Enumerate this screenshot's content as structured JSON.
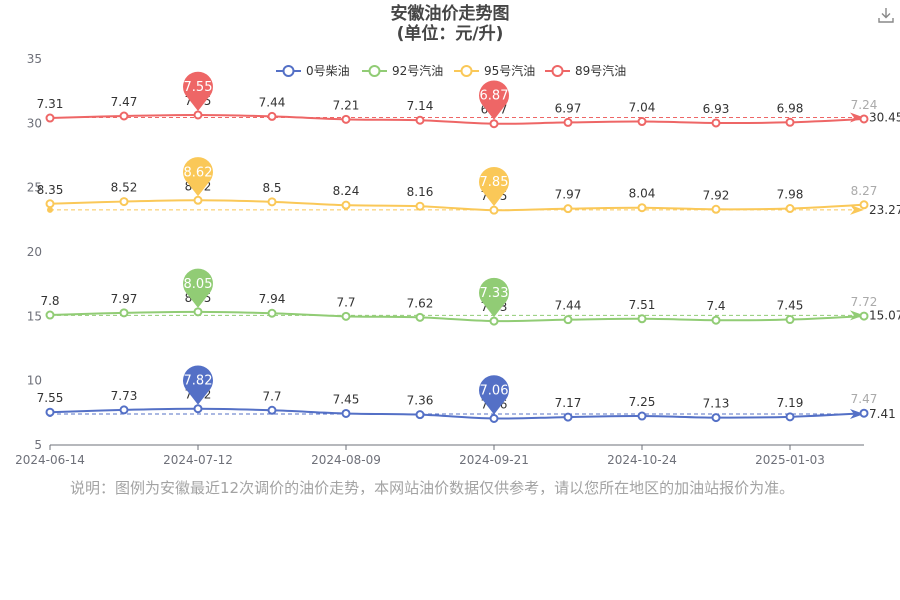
{
  "title": "安徽油价走势图",
  "subtitle": "(单位：元/升)",
  "note": "说明：图例为安徽最近12次调价的油价走势，本网站油价数据仅供参考，请以您所在地区的加油站报价为准。",
  "download_icon": "download-icon",
  "chart_data": {
    "type": "line",
    "x_tick_labels": [
      "2024-06-14",
      "2024-07-12",
      "2024-08-09",
      "2024-09-21",
      "2024-10-24",
      "2025-01-03"
    ],
    "y_ticks": [
      5,
      10,
      15,
      20,
      25,
      30,
      35
    ],
    "ylim": [
      5,
      35
    ],
    "legend_position": "top-center",
    "series": [
      {
        "name": "0号柴油",
        "color": "#5470c6",
        "offset": 0,
        "values": [
          7.55,
          7.73,
          7.82,
          7.7,
          7.45,
          7.36,
          7.06,
          7.17,
          7.25,
          7.13,
          7.19,
          7.47
        ],
        "average": 7.41,
        "max_label": "7.82",
        "min_label": "7.06"
      },
      {
        "name": "92号汽油",
        "color": "#91cc75",
        "offset": 7.3,
        "values": [
          7.8,
          7.97,
          8.05,
          7.94,
          7.7,
          7.62,
          7.33,
          7.44,
          7.51,
          7.4,
          7.45,
          7.72
        ],
        "average": 15.07,
        "max_label": "8.05",
        "min_label": "7.33"
      },
      {
        "name": "95号汽油",
        "color": "#fac858",
        "offset": 15.4,
        "values": [
          8.35,
          8.52,
          8.62,
          8.5,
          8.24,
          8.16,
          7.85,
          7.97,
          8.04,
          7.92,
          7.98,
          8.27
        ],
        "average": 23.27,
        "max_label": "8.62",
        "min_label": "7.85"
      },
      {
        "name": "89号汽油",
        "color": "#ee6666",
        "offset": 23.1,
        "values": [
          7.31,
          7.47,
          7.55,
          7.44,
          7.21,
          7.14,
          6.87,
          6.97,
          7.04,
          6.93,
          6.98,
          7.24
        ],
        "average": 30.45,
        "max_label": "7.55",
        "min_label": "6.87"
      }
    ]
  }
}
